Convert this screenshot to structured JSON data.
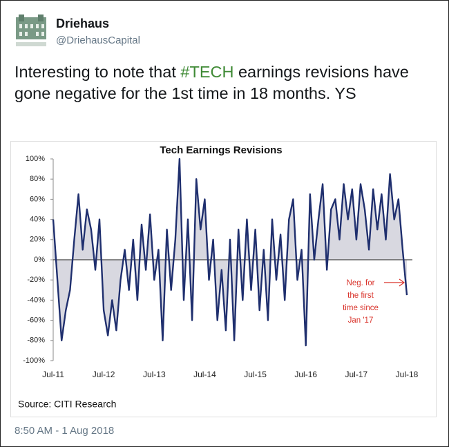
{
  "tweet": {
    "name": "Driehaus",
    "handle": "@DriehausCapital",
    "text": [
      "Interesting to note that ",
      "#TECH",
      " earnings revisions have gone negative for the 1st time in 18 months. YS"
    ],
    "timestamp": "8:50 AM - 1 Aug 2018"
  },
  "chart_data": {
    "type": "line",
    "title": "Tech Earnings Revisions",
    "source": "Source: CITI Research",
    "annotation": [
      "Neg. for",
      "the first",
      "time since",
      "Jan '17"
    ],
    "color": "#1f2f6e",
    "fill": "#d8d8e0",
    "categories": [
      "Jul-11",
      null,
      null,
      null,
      null,
      null,
      null,
      null,
      null,
      null,
      null,
      null,
      "Jul-12",
      null,
      null,
      null,
      null,
      null,
      null,
      null,
      null,
      null,
      null,
      null,
      "Jul-13",
      null,
      null,
      null,
      null,
      null,
      null,
      null,
      null,
      null,
      null,
      null,
      "Jul-14",
      null,
      null,
      null,
      null,
      null,
      null,
      null,
      null,
      null,
      null,
      null,
      "Jul-15",
      null,
      null,
      null,
      null,
      null,
      null,
      null,
      null,
      null,
      null,
      null,
      "Jul-16",
      null,
      null,
      null,
      null,
      null,
      null,
      null,
      null,
      null,
      null,
      null,
      "Jul-17",
      null,
      null,
      null,
      null,
      null,
      null,
      null,
      null,
      null,
      null,
      null,
      "Jul-18"
    ],
    "values": [
      40,
      -20,
      -80,
      -50,
      -30,
      20,
      65,
      10,
      50,
      30,
      -10,
      40,
      -50,
      -75,
      -40,
      -70,
      -20,
      10,
      -30,
      20,
      -40,
      35,
      -10,
      45,
      -20,
      10,
      -80,
      30,
      -30,
      20,
      100,
      -40,
      40,
      -60,
      80,
      30,
      60,
      -20,
      20,
      -60,
      -10,
      -70,
      20,
      -80,
      30,
      -40,
      40,
      -30,
      30,
      -50,
      10,
      -60,
      40,
      -20,
      25,
      -40,
      40,
      60,
      -20,
      10,
      -85,
      65,
      0,
      40,
      75,
      -10,
      50,
      60,
      20,
      75,
      40,
      70,
      20,
      75,
      50,
      10,
      70,
      30,
      65,
      20,
      85,
      40,
      60,
      10,
      -35
    ],
    "ylim": [
      -100,
      100
    ],
    "yticks": [
      {
        "value": 100,
        "label": "100%"
      },
      {
        "value": 80,
        "label": "80%"
      },
      {
        "value": 60,
        "label": "60%"
      },
      {
        "value": 40,
        "label": "40%"
      },
      {
        "value": 20,
        "label": "20%"
      },
      {
        "value": 0,
        "label": "0%"
      },
      {
        "value": -20,
        "label": "-20%"
      },
      {
        "value": -40,
        "label": "-40%"
      },
      {
        "value": -60,
        "label": "-60%"
      },
      {
        "value": -80,
        "label": "-80%"
      },
      {
        "value": -100,
        "label": "-100%"
      }
    ]
  }
}
